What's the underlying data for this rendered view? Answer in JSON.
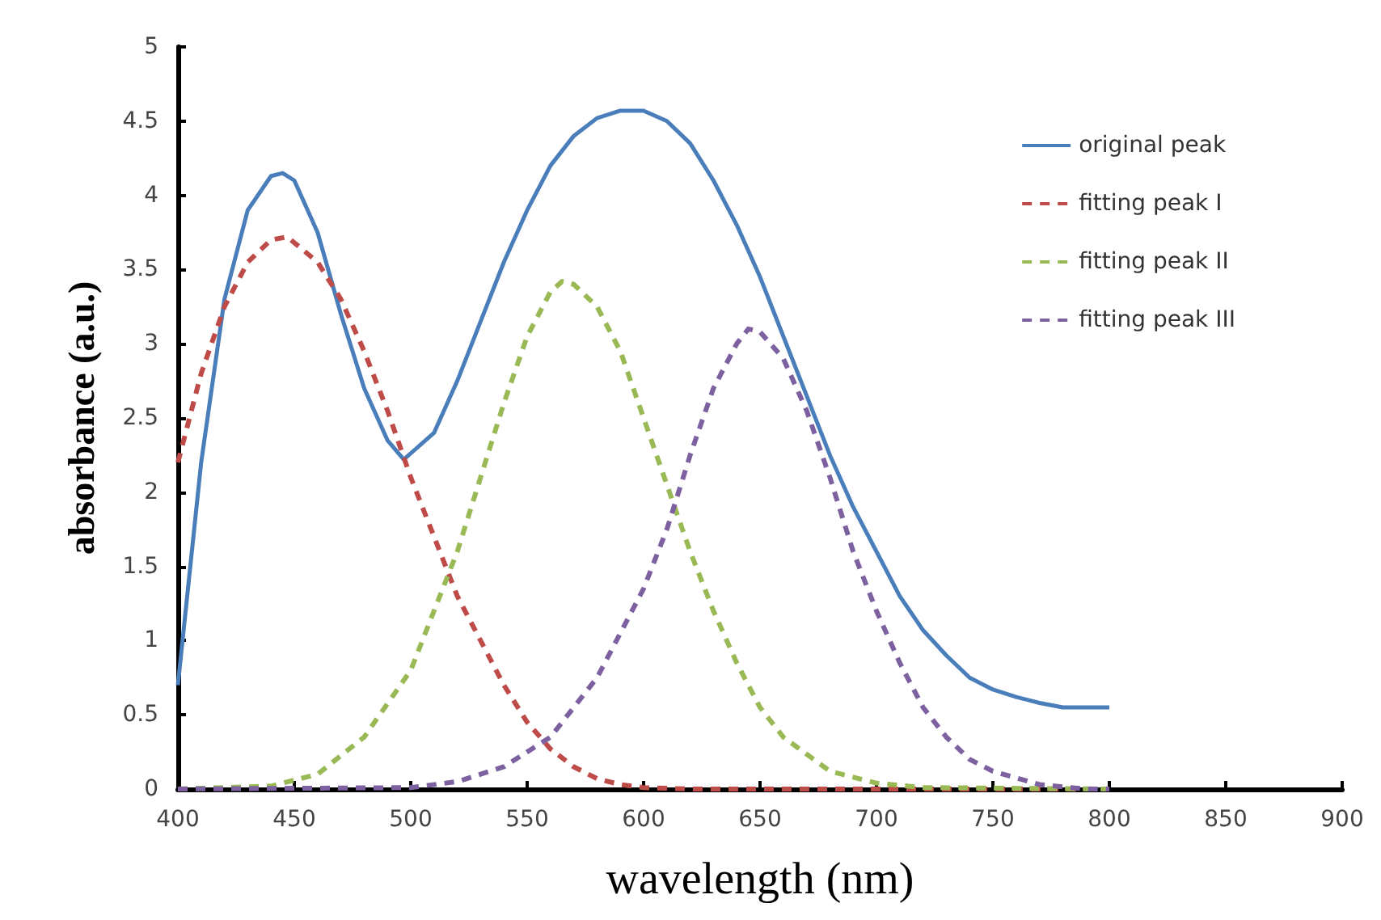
{
  "chart_data": {
    "type": "line",
    "xlabel": "wavelength (nm)",
    "ylabel": "absorbance (a.u.)",
    "xlim": [
      400,
      900
    ],
    "xticks": [
      400,
      450,
      500,
      550,
      600,
      650,
      700,
      750,
      800,
      850,
      900
    ],
    "ylim": [
      0,
      5
    ],
    "yticks": [
      0,
      0.5,
      1,
      1.5,
      2,
      2.5,
      3,
      3.5,
      4,
      4.5,
      5
    ],
    "grid": false,
    "legend": "top right",
    "marker": "none",
    "series": [
      {
        "name": "original peak",
        "color": "#4a7ebb",
        "line_style": "solid",
        "x": [
          400,
          410,
          420,
          430,
          440,
          445,
          450,
          460,
          470,
          480,
          490,
          497,
          510,
          520,
          530,
          540,
          550,
          560,
          570,
          580,
          590,
          600,
          610,
          620,
          630,
          640,
          650,
          660,
          670,
          680,
          690,
          700,
          710,
          720,
          730,
          740,
          750,
          760,
          770,
          780,
          800
        ],
        "values": [
          0.7,
          2.2,
          3.3,
          3.9,
          4.13,
          4.15,
          4.1,
          3.75,
          3.2,
          2.7,
          2.35,
          2.22,
          2.4,
          2.75,
          3.15,
          3.55,
          3.9,
          4.2,
          4.4,
          4.52,
          4.57,
          4.57,
          4.5,
          4.35,
          4.1,
          3.8,
          3.45,
          3.05,
          2.65,
          2.25,
          1.9,
          1.6,
          1.3,
          1.07,
          0.9,
          0.75,
          0.67,
          0.62,
          0.58,
          0.55,
          0.55
        ]
      },
      {
        "name": "fitting peak I",
        "color": "#be4b48",
        "line_style": "dashed",
        "x": [
          400,
          410,
          420,
          430,
          440,
          447,
          460,
          470,
          480,
          490,
          500,
          510,
          520,
          530,
          540,
          550,
          560,
          570,
          580,
          590,
          600,
          620,
          800
        ],
        "values": [
          2.2,
          2.8,
          3.25,
          3.55,
          3.7,
          3.72,
          3.55,
          3.3,
          2.95,
          2.55,
          2.1,
          1.7,
          1.3,
          1.0,
          0.7,
          0.45,
          0.27,
          0.15,
          0.07,
          0.03,
          0.01,
          0,
          0
        ]
      },
      {
        "name": "fitting peak II",
        "color": "#98b954",
        "line_style": "dashed",
        "x": [
          400,
          440,
          460,
          480,
          500,
          520,
          530,
          540,
          550,
          560,
          565,
          570,
          580,
          590,
          600,
          610,
          620,
          630,
          640,
          650,
          660,
          680,
          700,
          720,
          800
        ],
        "values": [
          0,
          0.02,
          0.1,
          0.35,
          0.8,
          1.6,
          2.1,
          2.6,
          3.05,
          3.35,
          3.42,
          3.4,
          3.25,
          2.95,
          2.5,
          2.05,
          1.6,
          1.2,
          0.85,
          0.55,
          0.35,
          0.12,
          0.04,
          0.01,
          0
        ]
      },
      {
        "name": "fitting peak III",
        "color": "#7d60a0",
        "line_style": "dashed",
        "x": [
          400,
          500,
          520,
          540,
          560,
          580,
          600,
          610,
          620,
          630,
          640,
          645,
          650,
          660,
          670,
          680,
          690,
          700,
          710,
          720,
          730,
          740,
          750,
          770,
          790,
          800
        ],
        "values": [
          0,
          0.01,
          0.05,
          0.15,
          0.35,
          0.75,
          1.35,
          1.75,
          2.25,
          2.7,
          3.0,
          3.1,
          3.08,
          2.9,
          2.55,
          2.1,
          1.6,
          1.2,
          0.85,
          0.55,
          0.35,
          0.2,
          0.12,
          0.03,
          0,
          0
        ]
      }
    ]
  }
}
